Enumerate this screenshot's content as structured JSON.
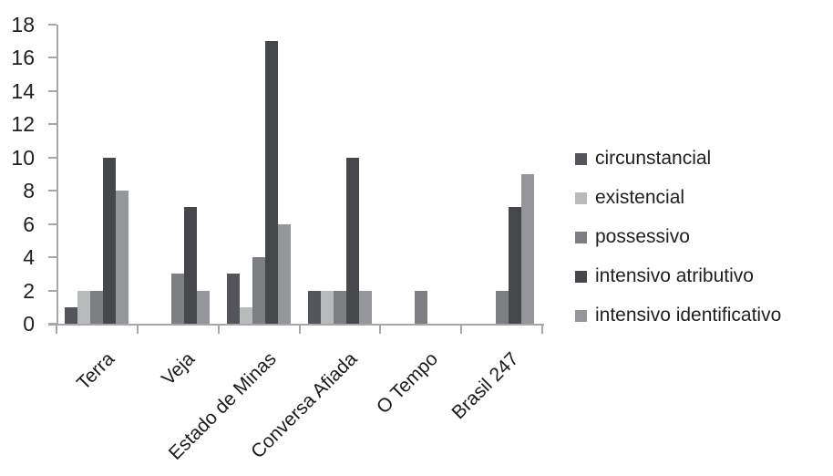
{
  "chart_data": {
    "type": "bar",
    "title": "",
    "xlabel": "",
    "ylabel": "",
    "categories": [
      "Terra",
      "Veja",
      "Estado de Minas",
      "Conversa Afiada",
      "O Tempo",
      "Brasil 247"
    ],
    "series": [
      {
        "name": "circunstancial",
        "color": "#54555a",
        "values": [
          1,
          0,
          3,
          2,
          0,
          0
        ]
      },
      {
        "name": "existencial",
        "color": "#b9babc",
        "values": [
          2,
          0,
          1,
          2,
          0,
          0
        ]
      },
      {
        "name": "possessivo",
        "color": "#7d7e82",
        "values": [
          2,
          3,
          4,
          2,
          2,
          2
        ]
      },
      {
        "name": "intensivo atributivo",
        "color": "#46474b",
        "values": [
          10,
          7,
          17,
          10,
          0,
          7
        ]
      },
      {
        "name": "intensivo identificativo",
        "color": "#95969a",
        "values": [
          8,
          2,
          6,
          2,
          0,
          9
        ]
      }
    ],
    "ylim": [
      0,
      18
    ],
    "ytick_step": 2,
    "grid": false,
    "legend_position": "right",
    "axis_color": "#a6a7a9",
    "text_color": "#1f1f1f",
    "background_color": "#ffffff"
  }
}
